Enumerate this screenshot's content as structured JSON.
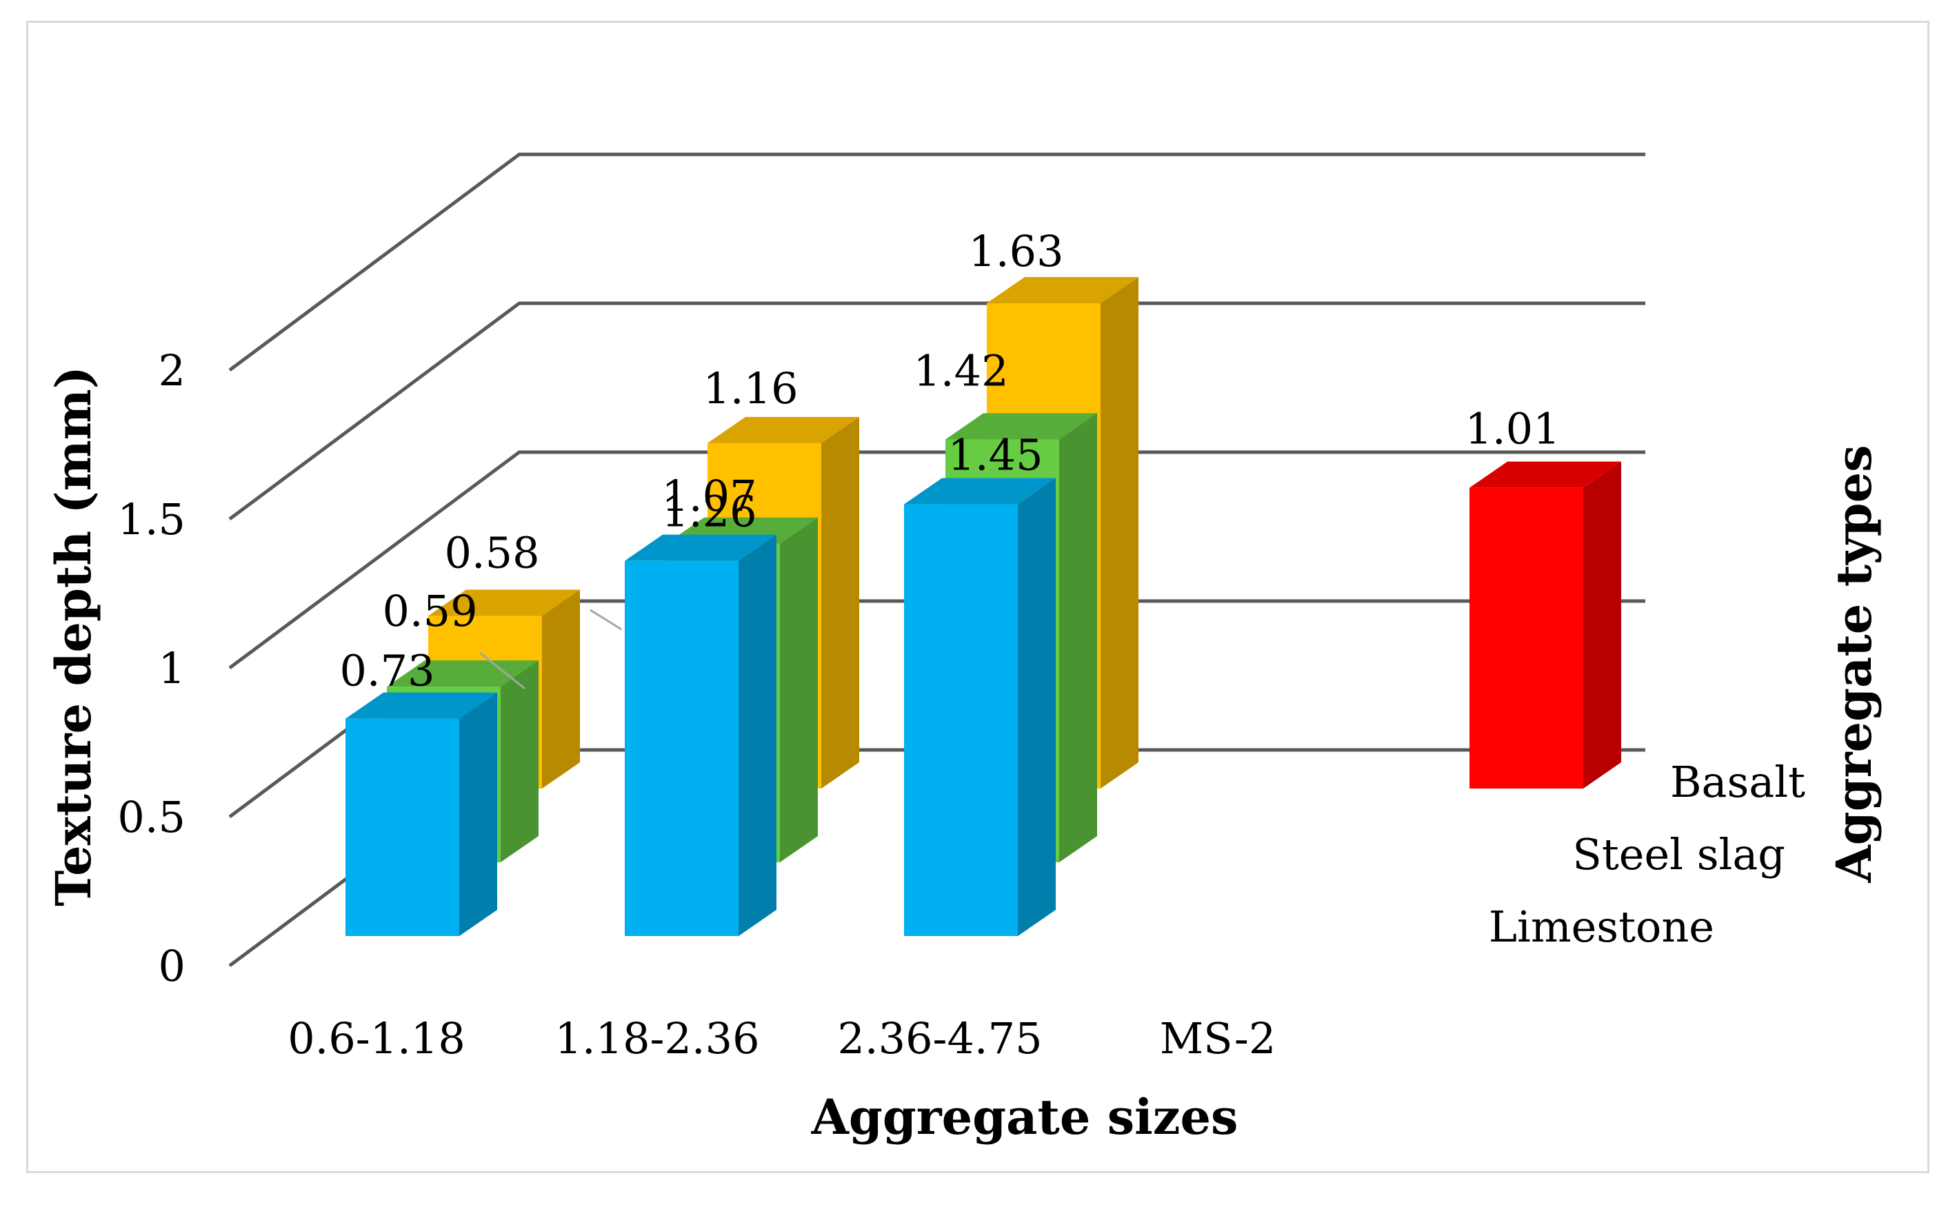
{
  "chart_data": {
    "type": "bar",
    "subtype": "3d-clustered-depth",
    "title": "",
    "xlabel": "Aggregate sizes",
    "ylabel": "Texture depth (mm)",
    "zlabel": "Aggregate types",
    "ylim": [
      0,
      2
    ],
    "yticks": [
      "0",
      "0.5",
      "1",
      "1.5",
      "2"
    ],
    "categories": [
      "0.6-1.18",
      "1.18-2.36",
      "2.36-4.75",
      "MS-2"
    ],
    "series": [
      {
        "name": "Limestone",
        "color": "#00b0f0",
        "values": [
          0.73,
          1.26,
          1.45,
          null
        ],
        "labels": [
          "0.73",
          "1.26",
          "1.45",
          ""
        ]
      },
      {
        "name": "Steel slag",
        "color": "#66cc44",
        "values": [
          0.59,
          1.07,
          1.42,
          null
        ],
        "labels": [
          "0.59",
          "1.07",
          "1.42",
          ""
        ]
      },
      {
        "name": "Basalt",
        "color": "#ffc000",
        "values": [
          0.58,
          1.16,
          1.63,
          1.01
        ],
        "labels": [
          "0.58",
          "1.16",
          "1.63",
          "1.01"
        ],
        "last_color": "#ff0000"
      }
    ],
    "legend_position": "right-depth-axis",
    "grid": true
  }
}
